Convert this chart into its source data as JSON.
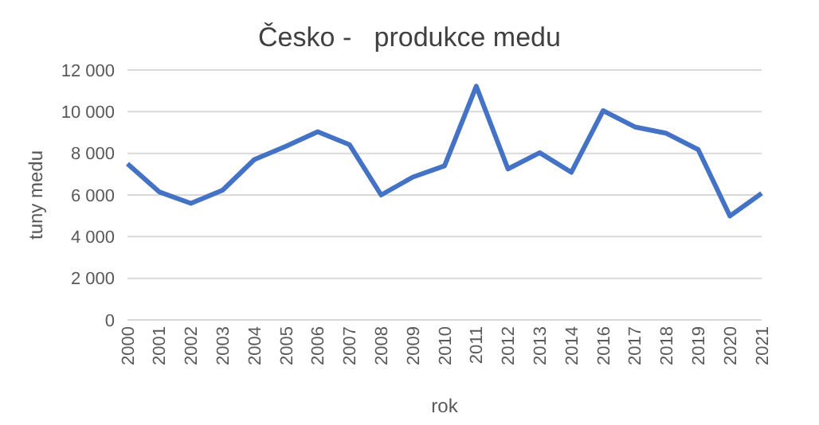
{
  "chart_data": {
    "type": "line",
    "title": "Česko -   produkce medu",
    "xlabel": "rok",
    "ylabel": "tuny medu",
    "categories": [
      "2000",
      "2001",
      "2002",
      "2003",
      "2004",
      "2005",
      "2006",
      "2007",
      "2008",
      "2009",
      "2010",
      "2011",
      "2012",
      "2013",
      "2014",
      "2016",
      "2017",
      "2018",
      "2019",
      "2020",
      "2021"
    ],
    "series": [
      {
        "color": "#4472c4",
        "values": [
          7500,
          6150,
          5600,
          6230,
          7700,
          8340,
          9040,
          8420,
          6000,
          6860,
          7400,
          11220,
          7250,
          8030,
          7090,
          10050,
          9270,
          8960,
          8180,
          4990,
          6080
        ]
      }
    ],
    "ylim": [
      0,
      12000
    ],
    "yticks": [
      {
        "value": 0,
        "label": "0"
      },
      {
        "value": 2000,
        "label": "2 000"
      },
      {
        "value": 4000,
        "label": "4 000"
      },
      {
        "value": 6000,
        "label": "6 000"
      },
      {
        "value": 8000,
        "label": "8 000"
      },
      {
        "value": 10000,
        "label": "10 000"
      },
      {
        "value": 12000,
        "label": "12 000"
      }
    ],
    "grid": "y",
    "legend": false,
    "marker": "none",
    "line_style": "solid"
  }
}
